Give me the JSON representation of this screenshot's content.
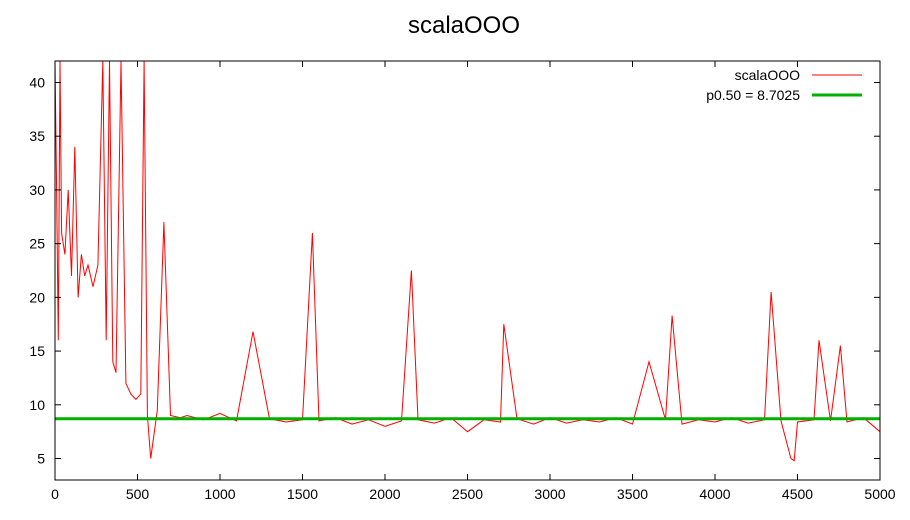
{
  "chart_data": {
    "type": "line",
    "title": "scalaOOO",
    "xlabel": "",
    "ylabel": "",
    "xlim": [
      0,
      5000
    ],
    "ylim": [
      3,
      42
    ],
    "xticks": [
      0,
      500,
      1000,
      1500,
      2000,
      2500,
      3000,
      3500,
      4000,
      4500,
      5000
    ],
    "yticks": [
      5,
      10,
      15,
      20,
      25,
      30,
      35,
      40
    ],
    "grid": false,
    "legend_position": "top-right",
    "series": [
      {
        "name": "scalaOOO",
        "color": "#ff0000",
        "style": "line",
        "x": [
          0,
          10,
          20,
          30,
          40,
          60,
          80,
          100,
          120,
          140,
          160,
          180,
          200,
          230,
          260,
          290,
          310,
          330,
          350,
          370,
          400,
          430,
          460,
          490,
          520,
          540,
          560,
          580,
          620,
          660,
          700,
          760,
          800,
          900,
          1000,
          1100,
          1200,
          1300,
          1400,
          1500,
          1560,
          1600,
          1700,
          1800,
          1900,
          2000,
          2100,
          2160,
          2200,
          2300,
          2400,
          2500,
          2600,
          2700,
          2720,
          2800,
          2900,
          3000,
          3100,
          3200,
          3300,
          3400,
          3500,
          3600,
          3700,
          3740,
          3800,
          3900,
          4000,
          4100,
          4200,
          4300,
          4340,
          4400,
          4460,
          4480,
          4500,
          4600,
          4630,
          4700,
          4760,
          4800,
          4900,
          5000
        ],
        "y": [
          42,
          30,
          16,
          42,
          26,
          24,
          30,
          22,
          34,
          20,
          24,
          22,
          23,
          21,
          23,
          42,
          16,
          42,
          14,
          13,
          42,
          12,
          11,
          10.5,
          11,
          42,
          9,
          5,
          9.5,
          27,
          9,
          8.8,
          9,
          8.6,
          9.2,
          8.5,
          16.8,
          8.7,
          8.4,
          8.6,
          26,
          8.5,
          8.8,
          8.2,
          8.6,
          8.0,
          8.5,
          22.5,
          8.6,
          8.3,
          8.8,
          7.5,
          8.6,
          8.4,
          17.5,
          8.7,
          8.2,
          8.8,
          8.3,
          8.6,
          8.4,
          8.8,
          8.2,
          14,
          8.6,
          18.3,
          8.2,
          8.6,
          8.4,
          8.8,
          8.3,
          8.6,
          20.5,
          8.5,
          5,
          4.8,
          8.4,
          8.6,
          16,
          8.5,
          15.5,
          8.4,
          8.8,
          7.5
        ]
      },
      {
        "name": "p0.50 = 8.7025",
        "color": "#00b000",
        "style": "line",
        "x": [
          0,
          5000
        ],
        "y": [
          8.7025,
          8.7025
        ]
      }
    ]
  }
}
